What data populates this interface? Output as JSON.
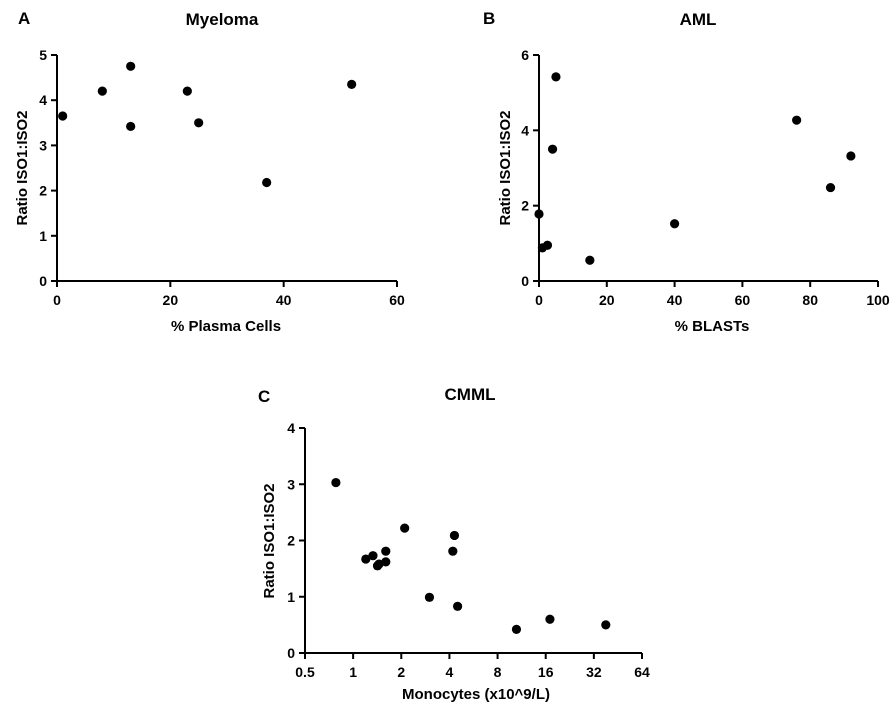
{
  "chart_data": [
    {
      "type": "scatter",
      "panel": "A",
      "title": "Myeloma",
      "xlabel": "% Plasma Cells",
      "ylabel": "Ratio ISO1:ISO2",
      "xlim": [
        0,
        60
      ],
      "ylim": [
        0,
        5
      ],
      "x_ticks": [
        0,
        20,
        40,
        60
      ],
      "y_ticks": [
        0,
        1,
        2,
        3,
        4,
        5
      ],
      "x_scale": "linear",
      "grid": false,
      "points": [
        {
          "x": 1,
          "y": 3.65
        },
        {
          "x": 8,
          "y": 4.2
        },
        {
          "x": 13,
          "y": 4.75
        },
        {
          "x": 13,
          "y": 3.42
        },
        {
          "x": 23,
          "y": 4.2
        },
        {
          "x": 25,
          "y": 3.5
        },
        {
          "x": 37,
          "y": 2.18
        },
        {
          "x": 52,
          "y": 4.35
        }
      ]
    },
    {
      "type": "scatter",
      "panel": "B",
      "title": "AML",
      "xlabel": "% BLASTs",
      "ylabel": "Ratio ISO1:ISO2",
      "xlim": [
        0,
        100
      ],
      "ylim": [
        0,
        6
      ],
      "x_ticks": [
        0,
        20,
        40,
        60,
        80,
        100
      ],
      "y_ticks": [
        0,
        2,
        4,
        6
      ],
      "x_scale": "linear",
      "grid": false,
      "points": [
        {
          "x": 0,
          "y": 1.78
        },
        {
          "x": 1,
          "y": 0.88
        },
        {
          "x": 2.5,
          "y": 0.95
        },
        {
          "x": 4,
          "y": 3.5
        },
        {
          "x": 5,
          "y": 5.42
        },
        {
          "x": 15,
          "y": 0.55
        },
        {
          "x": 40,
          "y": 1.52
        },
        {
          "x": 76,
          "y": 4.27
        },
        {
          "x": 86,
          "y": 2.48
        },
        {
          "x": 92,
          "y": 3.32
        }
      ]
    },
    {
      "type": "scatter",
      "panel": "C",
      "title": "CMML",
      "xlabel": "Monocytes (x10^9/L)",
      "ylabel": "Ratio ISO1:ISO2",
      "xlim": [
        0.5,
        64
      ],
      "ylim": [
        0,
        4
      ],
      "x_ticks": [
        0.5,
        1,
        2,
        4,
        8,
        16,
        32,
        64
      ],
      "x_tick_labels": [
        "0.5",
        "1",
        "2",
        "4",
        "8",
        "16",
        "32",
        "64"
      ],
      "y_ticks": [
        0,
        1,
        2,
        3,
        4
      ],
      "x_scale": "log2",
      "grid": false,
      "points": [
        {
          "x": 0.78,
          "y": 3.03
        },
        {
          "x": 1.2,
          "y": 1.67
        },
        {
          "x": 1.33,
          "y": 1.73
        },
        {
          "x": 1.42,
          "y": 1.55
        },
        {
          "x": 1.45,
          "y": 1.58
        },
        {
          "x": 1.6,
          "y": 1.81
        },
        {
          "x": 1.6,
          "y": 1.62
        },
        {
          "x": 2.1,
          "y": 2.22
        },
        {
          "x": 3.0,
          "y": 0.99
        },
        {
          "x": 4.3,
          "y": 2.09
        },
        {
          "x": 4.2,
          "y": 1.81
        },
        {
          "x": 4.5,
          "y": 0.83
        },
        {
          "x": 10.5,
          "y": 0.42
        },
        {
          "x": 17,
          "y": 0.6
        },
        {
          "x": 38,
          "y": 0.5
        }
      ]
    }
  ]
}
